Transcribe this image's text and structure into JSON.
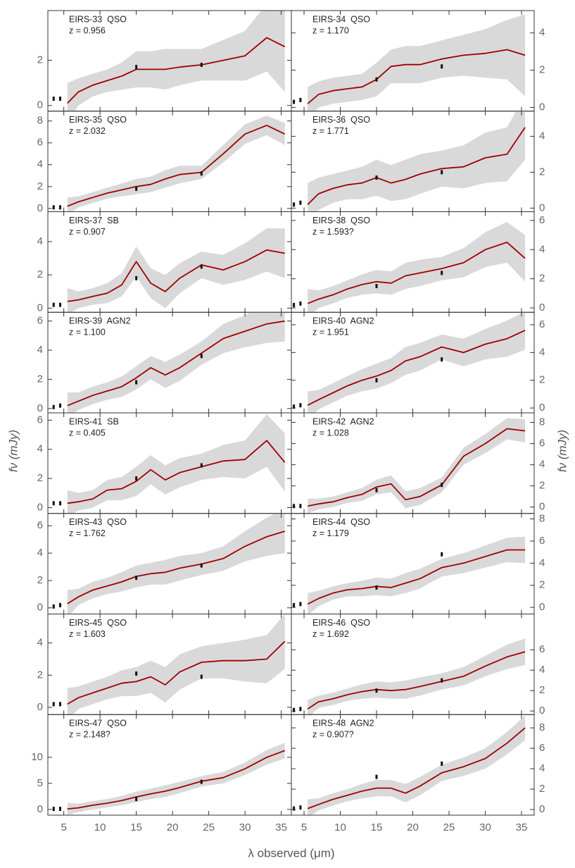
{
  "x_label": "λ observed (μm)",
  "y_label": "fν (mJy)",
  "chart_data": [
    {
      "type": "line",
      "title": "EIRS-33  QSO",
      "subtitle": "z = 0.956",
      "x": [
        5.5,
        7,
        9,
        11,
        13,
        15,
        17,
        19,
        21,
        24,
        27,
        30,
        33,
        35.5
      ],
      "values": [
        0.1,
        0.6,
        0.9,
        1.1,
        1.3,
        1.6,
        1.6,
        1.6,
        1.7,
        1.8,
        2.0,
        2.2,
        3.0,
        2.6
      ],
      "errors": [
        0.9,
        0.6,
        0.5,
        0.5,
        0.6,
        0.8,
        0.8,
        0.9,
        0.8,
        0.7,
        0.9,
        1.1,
        1.5,
        2.0
      ],
      "color": "#a00000",
      "band_color": "#d9d9d9",
      "points": {
        "x": [
          3.6,
          4.5,
          15,
          24
        ],
        "values": [
          0.3,
          0.3,
          1.7,
          1.8
        ]
      },
      "xlim": [
        2.8,
        36.4
      ],
      "xticks": [
        5,
        10,
        15,
        20,
        25,
        30,
        35
      ],
      "ylim": [
        -0.25,
        4.2
      ],
      "yticks": [
        0,
        2
      ]
    },
    {
      "type": "line",
      "title": "EIRS-34  QSO",
      "subtitle": "z = 1.170",
      "x": [
        5.5,
        7,
        9,
        11,
        13,
        15,
        17,
        19,
        21,
        24,
        27,
        30,
        33,
        35.5
      ],
      "values": [
        0.2,
        0.7,
        0.9,
        1.0,
        1.1,
        1.5,
        2.2,
        2.3,
        2.3,
        2.6,
        2.8,
        2.9,
        3.1,
        2.8
      ],
      "errors": [
        0.9,
        0.7,
        0.7,
        0.7,
        0.7,
        0.9,
        0.9,
        1.0,
        1.0,
        1.0,
        1.1,
        1.3,
        1.6,
        2.2
      ],
      "color": "#a00000",
      "band_color": "#d9d9d9",
      "points": {
        "x": [
          3.6,
          4.5,
          15,
          24
        ],
        "values": [
          0.3,
          0.4,
          1.5,
          2.2
        ]
      },
      "xlim": [
        3.25,
        36.75
      ],
      "xticks": [
        5,
        10,
        15,
        20,
        25,
        30,
        35
      ],
      "ylim": [
        -0.2,
        5.2
      ],
      "yticks": [
        0,
        2,
        4
      ]
    },
    {
      "type": "line",
      "title": "EIRS-35  QSO",
      "subtitle": "z = 2.032",
      "x": [
        5.5,
        7,
        9,
        11,
        13,
        15,
        17,
        19,
        21,
        24,
        27,
        30,
        33,
        35.5
      ],
      "values": [
        0.2,
        0.6,
        1.0,
        1.4,
        1.7,
        2.0,
        2.2,
        2.7,
        3.1,
        3.3,
        5.0,
        6.8,
        7.6,
        6.8
      ],
      "errors": [
        0.8,
        0.5,
        0.5,
        0.5,
        0.6,
        0.7,
        0.7,
        0.8,
        0.8,
        0.6,
        0.8,
        0.9,
        0.9,
        1.0
      ],
      "color": "#a00000",
      "band_color": "#d9d9d9",
      "points": {
        "x": [
          3.6,
          4.5,
          15,
          24
        ],
        "values": [
          0.1,
          0.1,
          1.8,
          3.2
        ]
      },
      "xlim": [
        2.8,
        36.4
      ],
      "xticks": [
        5,
        10,
        15,
        20,
        25,
        30,
        35
      ],
      "ylim": [
        -0.3,
        8.9
      ],
      "yticks": [
        0,
        2,
        4,
        6,
        8
      ]
    },
    {
      "type": "line",
      "title": "EIRS-36  QSO",
      "subtitle": "z = 1.771",
      "x": [
        5.5,
        7,
        9,
        11,
        13,
        15,
        17,
        19,
        21,
        24,
        27,
        30,
        33,
        35.5
      ],
      "values": [
        0.2,
        0.8,
        1.1,
        1.3,
        1.4,
        1.7,
        1.4,
        1.6,
        1.9,
        2.2,
        2.3,
        2.8,
        3.0,
        4.5
      ],
      "errors": [
        1.2,
        0.9,
        0.8,
        0.8,
        0.9,
        1.0,
        1.0,
        1.1,
        1.1,
        1.0,
        1.2,
        1.4,
        1.5,
        1.8
      ],
      "color": "#a00000",
      "band_color": "#d9d9d9",
      "points": {
        "x": [
          3.6,
          4.5,
          15,
          24
        ],
        "values": [
          0.2,
          0.3,
          1.7,
          2.0
        ]
      },
      "xlim": [
        3.25,
        36.75
      ],
      "xticks": [
        5,
        10,
        15,
        20,
        25,
        30,
        35
      ],
      "ylim": [
        -0.2,
        5.4
      ],
      "yticks": [
        0,
        2,
        4
      ]
    },
    {
      "type": "line",
      "title": "EIRS-37  SB",
      "subtitle": "z = 0.907",
      "x": [
        5.5,
        7,
        9,
        11,
        13,
        15,
        17,
        19,
        21,
        24,
        27,
        30,
        33,
        35.5
      ],
      "values": [
        0.4,
        0.5,
        0.7,
        0.9,
        1.4,
        2.8,
        1.5,
        1.0,
        1.8,
        2.6,
        2.3,
        2.8,
        3.5,
        3.3
      ],
      "errors": [
        0.8,
        0.5,
        0.5,
        0.6,
        0.7,
        0.9,
        0.9,
        1.0,
        0.9,
        0.8,
        0.9,
        1.1,
        1.3,
        1.5
      ],
      "color": "#a00000",
      "band_color": "#d9d9d9",
      "points": {
        "x": [
          3.6,
          4.5,
          15,
          24
        ],
        "values": [
          0.2,
          0.2,
          1.8,
          2.5
        ]
      },
      "xlim": [
        2.8,
        36.4
      ],
      "xticks": [
        5,
        10,
        15,
        20,
        25,
        30,
        35
      ],
      "ylim": [
        -0.25,
        5.8
      ],
      "yticks": [
        0,
        2,
        4
      ]
    },
    {
      "type": "line",
      "title": "EIRS-38  QSO",
      "subtitle": "z = 1.593?",
      "x": [
        5.5,
        7,
        9,
        11,
        13,
        15,
        17,
        19,
        21,
        24,
        27,
        30,
        33,
        35.5
      ],
      "values": [
        0.3,
        0.6,
        0.9,
        1.3,
        1.6,
        1.8,
        1.7,
        2.2,
        2.4,
        2.7,
        3.1,
        4.0,
        4.5,
        3.4
      ],
      "errors": [
        1.0,
        0.6,
        0.6,
        0.6,
        0.7,
        0.8,
        0.8,
        0.9,
        0.9,
        0.8,
        1.0,
        1.2,
        1.4,
        1.6
      ],
      "color": "#a00000",
      "band_color": "#d9d9d9",
      "points": {
        "x": [
          3.6,
          4.5,
          15,
          24
        ],
        "values": [
          0.2,
          0.3,
          1.5,
          2.4
        ]
      },
      "xlim": [
        3.25,
        36.75
      ],
      "xticks": [
        5,
        10,
        15,
        20,
        25,
        30,
        35
      ],
      "ylim": [
        -0.3,
        6.6
      ],
      "yticks": [
        0,
        2,
        4,
        6
      ]
    },
    {
      "type": "line",
      "title": "EIRS-39  AGN2",
      "subtitle": "z = 1.100",
      "x": [
        5.5,
        7,
        9,
        11,
        13,
        15,
        17,
        19,
        21,
        24,
        27,
        30,
        33,
        35.5
      ],
      "values": [
        0.2,
        0.5,
        0.9,
        1.2,
        1.5,
        2.1,
        2.8,
        2.3,
        2.8,
        3.8,
        4.8,
        5.3,
        5.8,
        6.0
      ],
      "errors": [
        0.9,
        0.6,
        0.6,
        0.6,
        0.7,
        0.8,
        0.8,
        0.9,
        0.9,
        0.8,
        1.0,
        1.1,
        1.3,
        1.4
      ],
      "color": "#a00000",
      "band_color": "#d9d9d9",
      "points": {
        "x": [
          3.6,
          4.5,
          15,
          24
        ],
        "values": [
          0.1,
          0.2,
          1.8,
          3.6
        ]
      },
      "xlim": [
        2.8,
        36.4
      ],
      "xticks": [
        5,
        10,
        15,
        20,
        25,
        30,
        35
      ],
      "ylim": [
        -0.3,
        6.6
      ],
      "yticks": [
        0,
        2,
        4,
        6
      ]
    },
    {
      "type": "line",
      "title": "EIRS-40  AGN2",
      "subtitle": "z = 1.951",
      "x": [
        5.5,
        7,
        9,
        11,
        13,
        15,
        17,
        19,
        21,
        24,
        27,
        30,
        33,
        35.5
      ],
      "values": [
        0.2,
        0.6,
        1.1,
        1.6,
        2.0,
        2.3,
        2.7,
        3.4,
        3.7,
        4.4,
        4.0,
        4.6,
        5.0,
        5.6
      ],
      "errors": [
        1.0,
        0.7,
        0.7,
        0.7,
        0.8,
        0.9,
        0.9,
        1.0,
        1.0,
        0.9,
        1.0,
        1.1,
        1.3,
        1.4
      ],
      "color": "#a00000",
      "band_color": "#d9d9d9",
      "points": {
        "x": [
          3.6,
          4.5,
          15,
          24
        ],
        "values": [
          0.1,
          0.2,
          2.0,
          3.5
        ]
      },
      "xlim": [
        3.25,
        36.75
      ],
      "xticks": [
        5,
        10,
        15,
        20,
        25,
        30,
        35
      ],
      "ylim": [
        -0.35,
        6.9
      ],
      "yticks": [
        0,
        2,
        4,
        6
      ]
    },
    {
      "type": "line",
      "title": "EIRS-41  SB",
      "subtitle": "z = 0.405",
      "x": [
        5.5,
        7,
        9,
        11,
        13,
        15,
        17,
        19,
        21,
        24,
        27,
        30,
        33,
        35.5
      ],
      "values": [
        0.3,
        0.4,
        0.6,
        1.2,
        1.3,
        1.8,
        2.6,
        1.9,
        2.4,
        2.8,
        3.2,
        3.3,
        4.6,
        3.1
      ],
      "errors": [
        0.9,
        0.6,
        0.6,
        0.7,
        0.8,
        1.0,
        1.0,
        1.0,
        1.0,
        0.9,
        1.1,
        1.3,
        1.8,
        2.0
      ],
      "color": "#a00000",
      "band_color": "#d9d9d9",
      "points": {
        "x": [
          3.6,
          4.5,
          15,
          24
        ],
        "values": [
          0.3,
          0.3,
          2.0,
          2.9
        ]
      },
      "xlim": [
        2.8,
        36.4
      ],
      "xticks": [
        5,
        10,
        15,
        20,
        25,
        30,
        35
      ],
      "ylim": [
        -0.4,
        6.5
      ],
      "yticks": [
        0,
        2,
        4,
        6
      ]
    },
    {
      "type": "line",
      "title": "EIRS-42  AGN2",
      "subtitle": "z = 1.028",
      "x": [
        5.5,
        7,
        9,
        11,
        13,
        15,
        17,
        19,
        21,
        24,
        27,
        30,
        33,
        35.5
      ],
      "values": [
        0.1,
        0.3,
        0.5,
        0.9,
        1.2,
        1.9,
        2.2,
        0.7,
        1.0,
        2.1,
        4.8,
        6.0,
        7.4,
        7.2
      ],
      "errors": [
        0.7,
        0.5,
        0.5,
        0.5,
        0.6,
        0.7,
        0.8,
        0.8,
        0.8,
        0.7,
        0.8,
        0.9,
        1.0,
        1.1
      ],
      "color": "#a00000",
      "band_color": "#d9d9d9",
      "points": {
        "x": [
          3.6,
          4.5,
          15,
          24
        ],
        "values": [
          0.1,
          0.1,
          1.6,
          2.1
        ]
      },
      "xlim": [
        3.25,
        36.75
      ],
      "xticks": [
        5,
        10,
        15,
        20,
        25,
        30,
        35
      ],
      "ylim": [
        -0.6,
        8.9
      ],
      "yticks": [
        0,
        2,
        4,
        6,
        8
      ]
    },
    {
      "type": "line",
      "title": "EIRS-43  QSO",
      "subtitle": "z = 1.762",
      "x": [
        5.5,
        7,
        9,
        11,
        13,
        15,
        17,
        19,
        21,
        24,
        27,
        30,
        33,
        35.5
      ],
      "values": [
        0.3,
        0.8,
        1.3,
        1.6,
        1.9,
        2.3,
        2.5,
        2.6,
        2.9,
        3.2,
        3.6,
        4.5,
        5.2,
        5.6
      ],
      "errors": [
        1.0,
        0.6,
        0.6,
        0.6,
        0.7,
        0.8,
        0.8,
        0.9,
        0.9,
        0.8,
        0.9,
        1.1,
        1.4,
        1.6
      ],
      "color": "#a00000",
      "band_color": "#d9d9d9",
      "points": {
        "x": [
          3.6,
          4.5,
          15,
          24
        ],
        "values": [
          0.1,
          0.2,
          2.2,
          3.1
        ]
      },
      "xlim": [
        2.8,
        36.4
      ],
      "xticks": [
        5,
        10,
        15,
        20,
        25,
        30,
        35
      ],
      "ylim": [
        -0.45,
        6.9
      ],
      "yticks": [
        0,
        2,
        4,
        6
      ]
    },
    {
      "type": "line",
      "title": "EIRS-44  QSO",
      "subtitle": "z = 1.179",
      "x": [
        5.5,
        7,
        9,
        11,
        13,
        15,
        17,
        19,
        21,
        24,
        27,
        30,
        33,
        35.5
      ],
      "values": [
        0.3,
        0.8,
        1.3,
        1.6,
        1.7,
        1.9,
        1.8,
        2.2,
        2.6,
        3.6,
        4.0,
        4.6,
        5.2,
        5.2
      ],
      "errors": [
        1.0,
        0.7,
        0.6,
        0.6,
        0.7,
        0.8,
        0.8,
        0.9,
        0.9,
        0.8,
        0.9,
        1.0,
        1.1,
        1.2
      ],
      "color": "#a00000",
      "band_color": "#d9d9d9",
      "points": {
        "x": [
          3.6,
          4.5,
          15,
          24
        ],
        "values": [
          0.2,
          0.3,
          1.8,
          4.8
        ]
      },
      "xlim": [
        3.25,
        36.75
      ],
      "xticks": [
        5,
        10,
        15,
        20,
        25,
        30,
        35
      ],
      "ylim": [
        -0.6,
        8.5
      ],
      "yticks": [
        0,
        2,
        4,
        6,
        8
      ]
    },
    {
      "type": "line",
      "title": "EIRS-45  QSO",
      "subtitle": "z = 1.603",
      "x": [
        5.5,
        7,
        9,
        11,
        13,
        15,
        17,
        19,
        21,
        24,
        27,
        30,
        33,
        35.5
      ],
      "values": [
        0.2,
        0.6,
        0.9,
        1.2,
        1.5,
        1.6,
        1.9,
        1.4,
        2.2,
        2.8,
        2.9,
        2.9,
        3.0,
        4.1
      ],
      "errors": [
        1.0,
        0.7,
        0.7,
        0.7,
        0.8,
        0.9,
        1.0,
        1.1,
        1.1,
        1.0,
        1.1,
        1.3,
        1.5,
        1.7
      ],
      "color": "#a00000",
      "band_color": "#d9d9d9",
      "points": {
        "x": [
          3.6,
          4.5,
          15,
          24
        ],
        "values": [
          0.2,
          0.2,
          2.1,
          1.9
        ]
      },
      "xlim": [
        2.8,
        36.4
      ],
      "xticks": [
        5,
        10,
        15,
        20,
        25,
        30,
        35
      ],
      "ylim": [
        -0.45,
        5.8
      ],
      "yticks": [
        0,
        2,
        4
      ]
    },
    {
      "type": "line",
      "title": "EIRS-46  QSO",
      "subtitle": "z = 1.692",
      "x": [
        5.5,
        7,
        9,
        11,
        13,
        15,
        17,
        19,
        21,
        24,
        27,
        30,
        33,
        35.5
      ],
      "values": [
        0.2,
        0.9,
        1.2,
        1.6,
        1.9,
        2.1,
        2.0,
        2.1,
        2.4,
        2.9,
        3.4,
        4.4,
        5.3,
        5.8
      ],
      "errors": [
        0.9,
        0.6,
        0.6,
        0.6,
        0.7,
        0.8,
        0.8,
        0.9,
        0.9,
        0.8,
        0.9,
        1.0,
        1.2,
        1.3
      ],
      "color": "#a00000",
      "band_color": "#d9d9d9",
      "points": {
        "x": [
          3.6,
          4.5,
          15,
          24
        ],
        "values": [
          0.1,
          0.2,
          2.0,
          3.0
        ]
      },
      "xlim": [
        3.25,
        36.75
      ],
      "xticks": [
        5,
        10,
        15,
        20,
        25,
        30,
        35
      ],
      "ylim": [
        -0.35,
        9.5
      ],
      "yticks": [
        0,
        2,
        4,
        6
      ]
    },
    {
      "type": "line",
      "title": "EIRS-47  QSO",
      "subtitle": "z = 2.148?",
      "x": [
        5.5,
        7,
        9,
        11,
        13,
        15,
        17,
        19,
        21,
        24,
        27,
        30,
        33,
        35.5
      ],
      "values": [
        0.1,
        0.3,
        0.8,
        1.2,
        1.7,
        2.4,
        3.0,
        3.5,
        4.2,
        5.4,
        6.1,
        7.8,
        10.0,
        11.3
      ],
      "errors": [
        1.2,
        0.8,
        0.8,
        0.8,
        0.9,
        1.0,
        1.0,
        1.1,
        1.1,
        1.0,
        1.1,
        1.2,
        1.4,
        1.5
      ],
      "color": "#a00000",
      "band_color": "#d9d9d9",
      "points": {
        "x": [
          3.6,
          4.5,
          15,
          24
        ],
        "values": [
          0.1,
          0.1,
          2.0,
          5.3
        ]
      },
      "xlim": [
        2.8,
        36.4
      ],
      "xticks": [
        5,
        10,
        15,
        20,
        25,
        30,
        35
      ],
      "ylim": [
        -1.1,
        18.2
      ],
      "yticks": [
        0,
        5,
        10
      ]
    },
    {
      "type": "line",
      "title": "EIRS-48  AGN2",
      "subtitle": "z = 0.907?",
      "x": [
        5.5,
        7,
        9,
        11,
        13,
        15,
        17,
        19,
        21,
        24,
        27,
        30,
        33,
        35.5
      ],
      "values": [
        0.1,
        0.5,
        1.0,
        1.4,
        1.8,
        2.1,
        2.1,
        1.6,
        2.3,
        3.6,
        4.2,
        5.0,
        6.5,
        8.0
      ],
      "errors": [
        0.9,
        0.6,
        0.6,
        0.6,
        0.7,
        0.8,
        0.8,
        0.9,
        0.9,
        0.8,
        0.9,
        1.0,
        1.1,
        1.2
      ],
      "color": "#a00000",
      "band_color": "#d9d9d9",
      "points": {
        "x": [
          3.6,
          4.5,
          15,
          24
        ],
        "values": [
          0.1,
          0.2,
          3.2,
          4.5
        ]
      },
      "xlim": [
        3.25,
        36.75
      ],
      "xticks": [
        5,
        10,
        15,
        20,
        25,
        30,
        35
      ],
      "ylim": [
        -0.55,
        9.3
      ],
      "yticks": [
        0,
        2,
        4,
        6,
        8
      ]
    }
  ]
}
